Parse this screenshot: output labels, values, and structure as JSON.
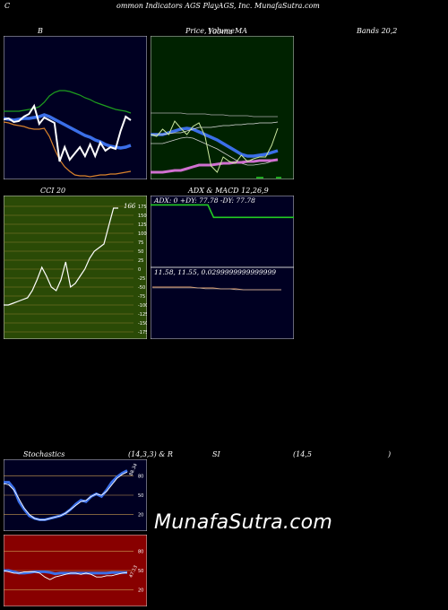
{
  "header": {
    "left": "C",
    "title": "ommon Indicators AGS PlayAGS, Inc. MunafaSutra.com"
  },
  "labels": {
    "bollinger": "B",
    "price_left": "Price,",
    "price_volume": "Volume",
    "price_overlap": "100ma",
    "price_ma": "MA",
    "bands": "Bands 20,2",
    "cci": "CCI 20",
    "adx_macd": "ADX  & MACD 12,26,9",
    "stoch_left": "Stochastics",
    "stoch_mid": "(14,3,3) & R",
    "rsi_si": "SI",
    "rsi_params": "(14,5",
    "rsi_close": ")"
  },
  "watermark": "MunafaSutra.com",
  "colors": {
    "panel_navy": "#000022",
    "panel_green": "#002200",
    "panel_red": "#880000",
    "olive_grid": "#6b6b1a",
    "grid_line": "#8a7a30",
    "blue_line": "#3b6fe8",
    "green_line": "#1e9e1e",
    "orange_line": "#d9822b",
    "white_line": "#ffffff"
  },
  "chart_data": [
    {
      "id": "bollinger",
      "type": "line",
      "series": [
        {
          "values": [
            84,
            84,
            84,
            84,
            83,
            82,
            81,
            79,
            74,
            67,
            63,
            61,
            61,
            62,
            64,
            66,
            69,
            71,
            74,
            76,
            78,
            80,
            82,
            83,
            84,
            86
          ]
        },
        {
          "values": [
            92,
            93,
            94,
            93,
            92,
            92,
            91,
            90,
            88,
            90,
            93,
            96,
            99,
            102,
            105,
            108,
            111,
            113,
            116,
            118,
            121,
            123,
            124,
            125,
            124,
            122
          ]
        },
        {
          "values": [
            96,
            97,
            99,
            100,
            101,
            103,
            104,
            104,
            103,
            112,
            126,
            138,
            146,
            151,
            155,
            156,
            156,
            157,
            156,
            155,
            155,
            154,
            154,
            153,
            152,
            151
          ]
        },
        {
          "values": [
            93,
            92,
            96,
            95,
            90,
            87,
            78,
            98,
            91,
            94,
            97,
            140,
            124,
            138,
            131,
            124,
            134,
            121,
            134,
            119,
            128,
            124,
            126,
            106,
            90,
            94
          ]
        }
      ]
    },
    {
      "id": "price_ma",
      "type": "line",
      "series": [
        {
          "values": [
            86,
            86,
            86,
            86,
            86,
            86,
            87,
            87,
            87,
            87,
            88,
            88,
            88,
            89,
            89,
            89,
            89,
            90,
            90,
            90,
            90,
            90
          ]
        },
        {
          "values": [
            110,
            110,
            110,
            108,
            106,
            104,
            103,
            104,
            107,
            110,
            113,
            116,
            120,
            124,
            128,
            132,
            134,
            134,
            133,
            132,
            130,
            128
          ]
        },
        {
          "values": [
            152,
            152,
            152,
            151,
            150,
            150,
            148,
            146,
            144,
            144,
            144,
            143,
            142,
            142,
            141,
            141,
            140,
            140,
            139,
            139,
            139,
            138
          ]
        },
        {
          "values": [
            110,
            112,
            104,
            110,
            95,
            103,
            110,
            101,
            97,
            112,
            145,
            152,
            135,
            140,
            142,
            133,
            140,
            137,
            135,
            135,
            122,
            103
          ]
        }
      ]
    },
    {
      "id": "cci",
      "type": "line",
      "yticks": [
        175,
        150,
        125,
        100,
        75,
        50,
        25,
        0,
        -25,
        -50,
        -75,
        -100,
        -125,
        -150,
        -175
      ],
      "ylim": [
        -175,
        175
      ],
      "last_value": 166,
      "last_label": "166",
      "series": [
        {
          "values": [
            -100,
            -100,
            -95,
            -90,
            -85,
            -80,
            -60,
            -30,
            5,
            -20,
            -50,
            -60,
            -30,
            20,
            -50,
            -40,
            -20,
            0,
            30,
            50,
            60,
            70,
            120,
            170,
            170
          ]
        }
      ]
    },
    {
      "id": "adx",
      "type": "line",
      "readout": "ADX: 0   +DY: 77.78   -DY: 77.78",
      "series": [
        {
          "values": [
            100,
            100,
            100,
            100,
            100,
            100,
            100,
            100,
            100,
            100,
            100,
            80,
            80,
            80,
            80,
            80,
            80,
            80,
            80,
            80,
            80,
            80,
            80,
            80,
            80,
            80
          ]
        }
      ]
    },
    {
      "id": "macd",
      "type": "line",
      "readout": "11.58,  11.55,  0.0299999999999999",
      "series": [
        {
          "values": [
            11.58,
            11.58,
            11.58,
            11.58,
            11.58,
            11.58,
            11.57,
            11.57,
            11.57,
            11.56,
            11.56,
            11.56,
            11.55,
            11.55,
            11.55,
            11.55,
            11.55,
            11.55
          ]
        },
        {
          "values": [
            11.57,
            11.57,
            11.57,
            11.57,
            11.57,
            11.57,
            11.57,
            11.56,
            11.56,
            11.56,
            11.56,
            11.55,
            11.55,
            11.55,
            11.55,
            11.55,
            11.55,
            11.55
          ]
        }
      ]
    },
    {
      "id": "stochastics",
      "type": "line",
      "yticks": [
        80,
        50,
        20
      ],
      "ylim": [
        0,
        100
      ],
      "last_label": "88.34",
      "series": [
        {
          "values": [
            70,
            70,
            60,
            40,
            28,
            18,
            14,
            12,
            12,
            14,
            16,
            18,
            22,
            28,
            36,
            42,
            40,
            48,
            52,
            48,
            58,
            70,
            78,
            84,
            88
          ]
        },
        {
          "values": [
            68,
            66,
            58,
            44,
            30,
            20,
            14,
            12,
            12,
            14,
            16,
            18,
            22,
            28,
            34,
            40,
            42,
            48,
            52,
            50,
            56,
            66,
            76,
            82,
            86
          ]
        }
      ]
    },
    {
      "id": "rsi",
      "type": "line",
      "yticks": [
        80,
        50,
        20
      ],
      "ylim": [
        0,
        100
      ],
      "last_label": "47.13",
      "series": [
        {
          "values": [
            50,
            50,
            48,
            46,
            46,
            47,
            48,
            48,
            48,
            47,
            45,
            46,
            46,
            46,
            46,
            46,
            46,
            46,
            46,
            46,
            46,
            47,
            47,
            47,
            47
          ]
        },
        {
          "values": [
            50,
            48,
            46,
            46,
            48,
            48,
            48,
            46,
            40,
            36,
            40,
            42,
            44,
            46,
            46,
            44,
            46,
            44,
            40,
            40,
            42,
            42,
            44,
            46,
            47
          ]
        }
      ]
    }
  ]
}
